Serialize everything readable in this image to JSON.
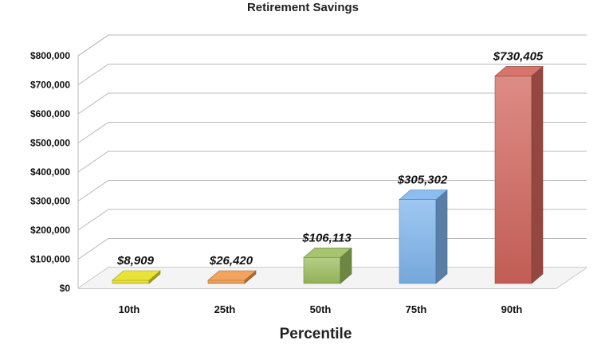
{
  "chart_data": {
    "type": "bar",
    "title": "Retirement Savings",
    "xlabel": "Percentile",
    "ylabel": "",
    "categories": [
      "10th",
      "25th",
      "50th",
      "75th",
      "90th"
    ],
    "values": [
      8909,
      26420,
      106113,
      305302,
      730405
    ],
    "data_labels": [
      "$8,909",
      "$26,420",
      "$106,113",
      "$305,302",
      "$730,405"
    ],
    "ylim": [
      0,
      800000
    ],
    "y_ticks": [
      0,
      100000,
      200000,
      300000,
      400000,
      500000,
      600000,
      700000,
      800000
    ],
    "y_tick_labels": [
      "$0",
      "$100,000",
      "$200,000",
      "$300,000",
      "$400,000",
      "$500,000",
      "$600,000",
      "$700,000",
      "$800,000"
    ],
    "grid": true,
    "style": "3d",
    "legend": "none",
    "colors": [
      "#e6e020",
      "#f0994a",
      "#9cbf5e",
      "#7fb6ee",
      "#d2655c"
    ]
  }
}
